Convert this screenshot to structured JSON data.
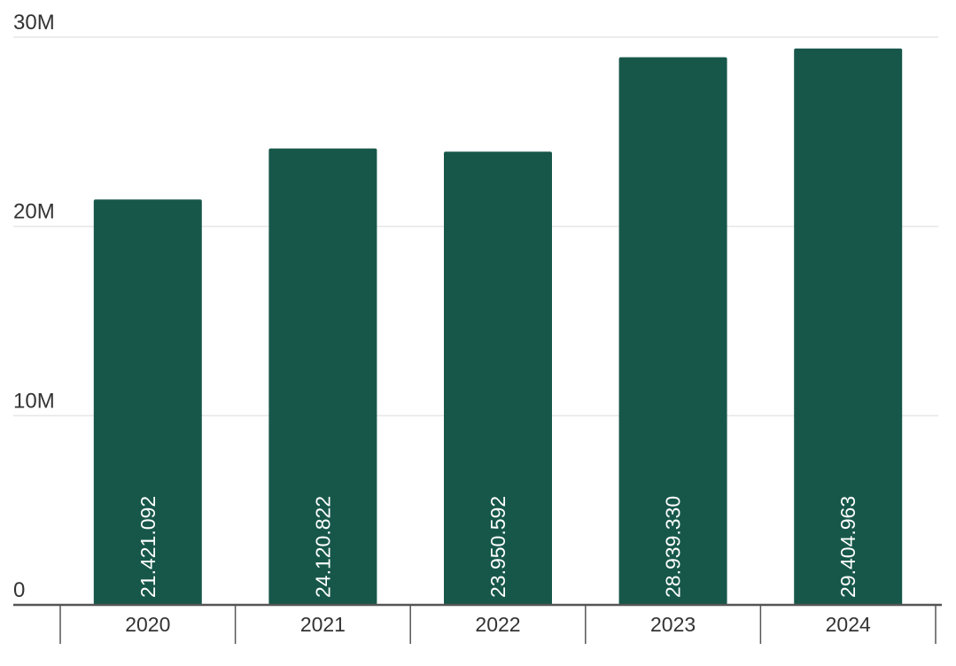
{
  "chart_data": {
    "type": "bar",
    "categories": [
      "2020",
      "2021",
      "2022",
      "2023",
      "2024"
    ],
    "values": [
      21421092,
      24120822,
      23950592,
      28939330,
      29404963
    ],
    "data_labels": [
      "21.421.092",
      "24.120.822",
      "23.950.592",
      "28.939.330",
      "29.404.963"
    ],
    "yticks": [
      {
        "value": 0,
        "label": "0"
      },
      {
        "value": 10000000,
        "label": "10M"
      },
      {
        "value": 20000000,
        "label": "20M"
      },
      {
        "value": 30000000,
        "label": "30M"
      }
    ],
    "ylim": [
      0,
      30000000
    ],
    "title": "",
    "xlabel": "",
    "ylabel": "",
    "grid": true,
    "legend": "none",
    "colors": {
      "bar": "#17574a",
      "grid": "#e6e6e6",
      "axis": "#555555",
      "text": "#333333",
      "data_label": "#ffffff"
    }
  }
}
